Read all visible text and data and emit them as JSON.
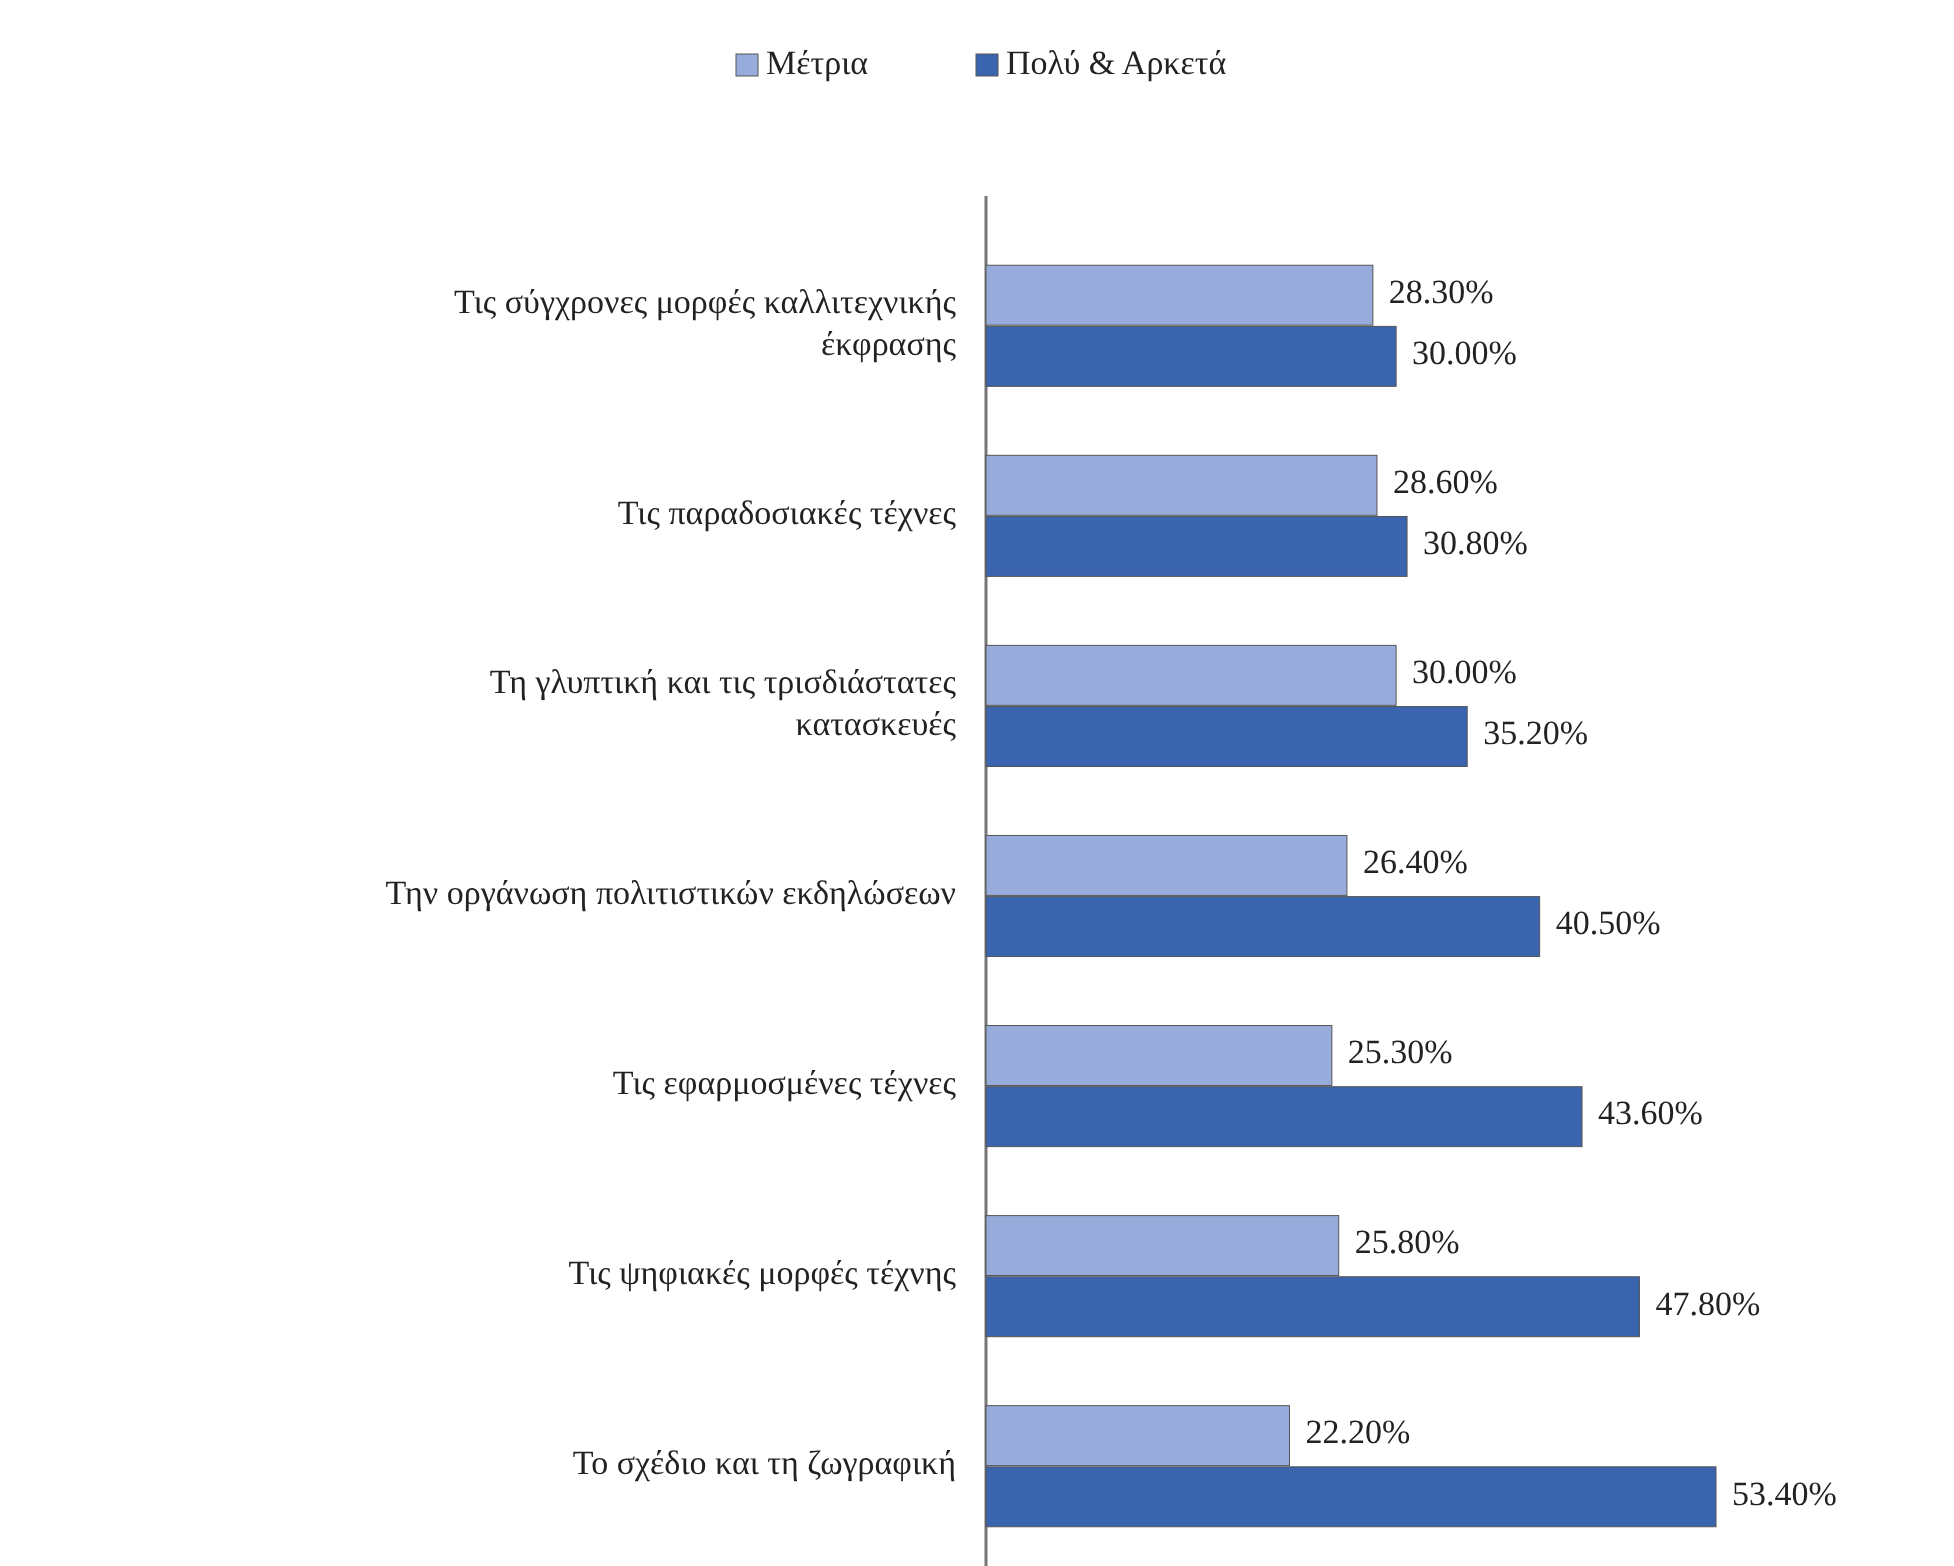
{
  "chart_data": {
    "type": "bar",
    "orientation": "horizontal",
    "legend": "top",
    "categories": [
      "Τις σύγχρονες μορφές καλλιτεχνικής έκφρασης",
      "Τις παραδοσιακές τέχνες",
      "Τη γλυπτική και τις τρισδιάστατες κατασκευές",
      "Την οργάνωση πολιτιστικών εκδηλώσεων",
      "Τις εφαρμοσμένες τέχνες",
      "Τις ψηφιακές μορφές τέχνης",
      "Το σχέδιο και τη ζωγραφική"
    ],
    "series": [
      {
        "name": "Μέτρια",
        "color": "#98acdc",
        "values": [
          28.3,
          28.6,
          30.0,
          26.4,
          25.3,
          25.8,
          22.2
        ],
        "value_labels": [
          "28.30%",
          "28.60%",
          "30.00%",
          "26.40%",
          "25.30%",
          "25.80%",
          "22.20%"
        ]
      },
      {
        "name": "Πολύ & Αρκετά",
        "color": "#3b64ae",
        "values": [
          30.0,
          30.8,
          35.2,
          40.5,
          43.6,
          47.8,
          53.4
        ],
        "value_labels": [
          "30.00%",
          "30.80%",
          "35.20%",
          "40.50%",
          "43.60%",
          "47.80%",
          "53.40%"
        ]
      }
    ]
  }
}
